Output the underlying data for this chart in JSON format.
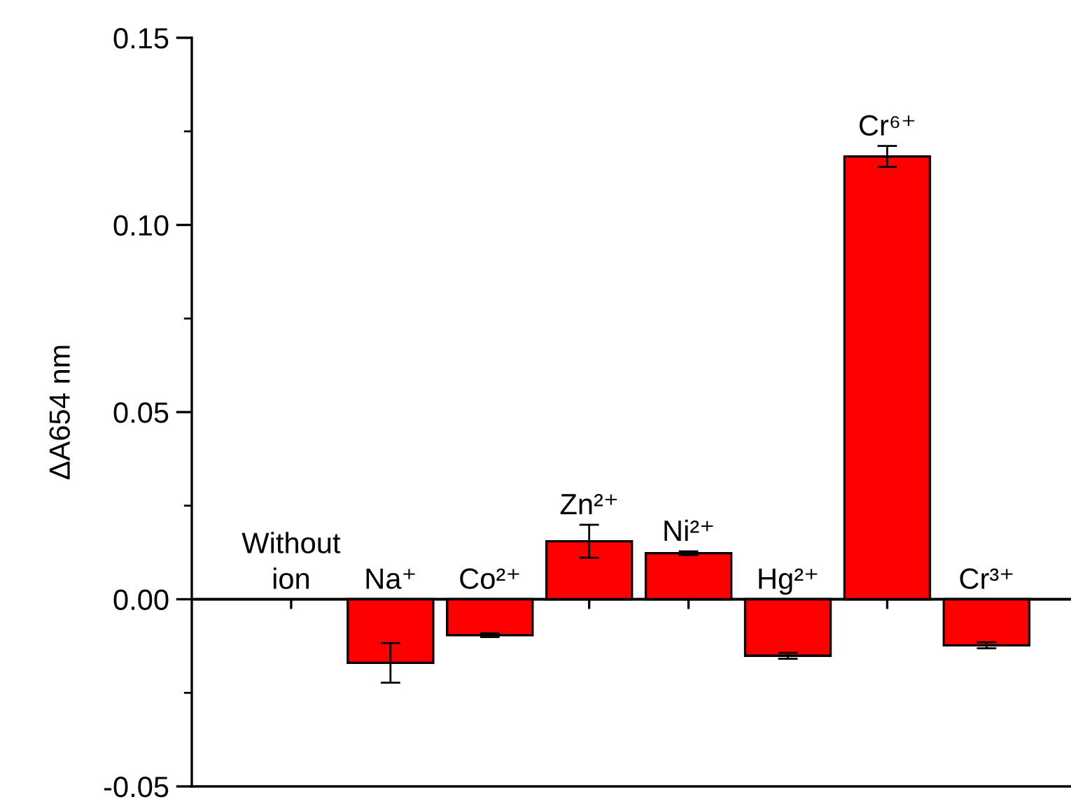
{
  "chart_data": {
    "type": "bar",
    "ylabel": "ΔA654 nm",
    "categories": [
      "Without\nion",
      "Na⁺",
      "Co²⁺",
      "Zn²⁺",
      "Ni²⁺",
      "Hg²⁺",
      "Cr⁶⁺",
      "Cr³⁺"
    ],
    "values": [
      0,
      -0.017,
      -0.0096,
      0.0155,
      0.0123,
      -0.0151,
      0.1183,
      -0.0123
    ],
    "errors": [
      null,
      0.0053,
      0.0005,
      0.0044,
      0.0005,
      0.0008,
      0.0028,
      0.0008
    ],
    "color": "#ff0000",
    "ylim": [
      -0.05,
      0.15
    ],
    "yticks": [
      {
        "value": -0.05,
        "label": "-0.05"
      },
      {
        "value": -0.025,
        "label": null
      },
      {
        "value": 0,
        "label": "0.00"
      },
      {
        "value": 0.025,
        "label": null
      },
      {
        "value": 0.05,
        "label": "0.05"
      },
      {
        "value": 0.075,
        "label": null
      },
      {
        "value": 0.1,
        "label": "0.10"
      },
      {
        "value": 0.125,
        "label": null
      },
      {
        "value": 0.15,
        "label": "0.15"
      }
    ],
    "tick_labels": "y",
    "grid": false
  }
}
